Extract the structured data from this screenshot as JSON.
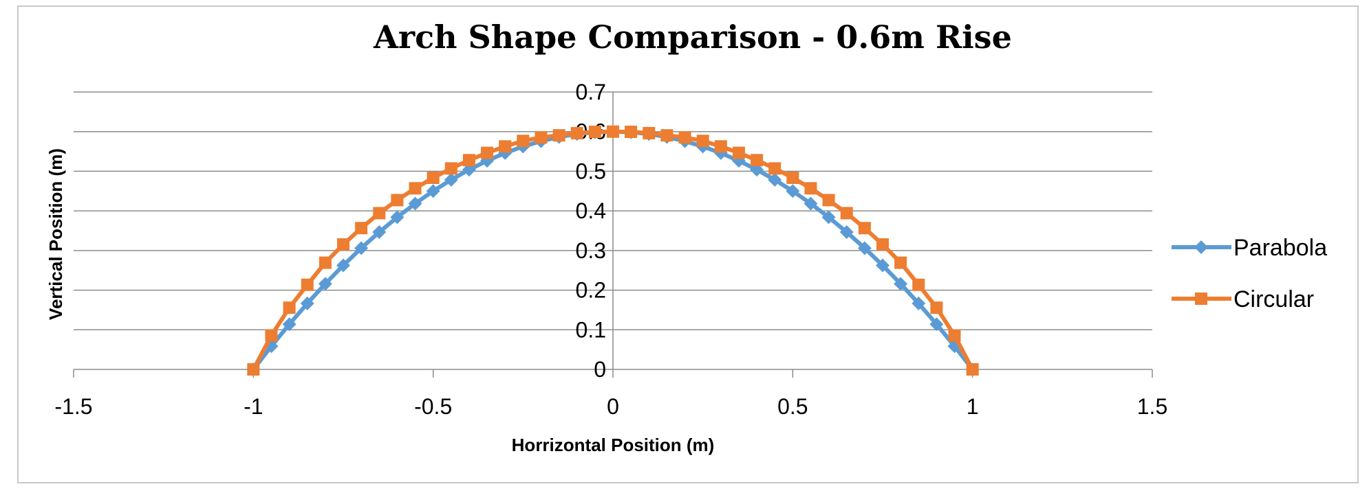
{
  "chart_data": {
    "type": "line",
    "title": "Arch Shape Comparison - 0.6m Rise",
    "xlabel": "Horrizontal Position (m)",
    "ylabel": "Vertical Position (m)",
    "xlim": [
      -1.5,
      1.5
    ],
    "ylim": [
      0,
      0.7
    ],
    "x_ticks": [
      "-1.5",
      "-1",
      "-0.5",
      "0",
      "0.5",
      "1",
      "1.5"
    ],
    "y_ticks": [
      "0",
      "0.1",
      "0.2",
      "0.3",
      "0.4",
      "0.5",
      "0.6",
      "0.7"
    ],
    "grid": "horizontal",
    "legend_position": "right",
    "x": [
      -1,
      -0.95,
      -0.9,
      -0.85,
      -0.8,
      -0.75,
      -0.7,
      -0.65,
      -0.6,
      -0.55,
      -0.5,
      -0.45,
      -0.4,
      -0.35,
      -0.3,
      -0.25,
      -0.2,
      -0.15,
      -0.1,
      -0.05,
      0,
      0.05,
      0.1,
      0.15,
      0.2,
      0.25,
      0.3,
      0.35,
      0.4,
      0.45,
      0.5,
      0.55,
      0.6,
      0.65,
      0.7,
      0.75,
      0.8,
      0.85,
      0.9,
      0.95,
      1
    ],
    "series": [
      {
        "name": "Parabola",
        "color": "#5b9bd5",
        "marker": "diamond",
        "values": [
          0,
          0.0585,
          0.114,
          0.1665,
          0.216,
          0.2625,
          0.306,
          0.3465,
          0.384,
          0.4185,
          0.45,
          0.4785,
          0.504,
          0.5265,
          0.546,
          0.5625,
          0.576,
          0.5865,
          0.594,
          0.5985,
          0.6,
          0.5985,
          0.594,
          0.5865,
          0.576,
          0.5625,
          0.546,
          0.5265,
          0.504,
          0.4785,
          0.45,
          0.4185,
          0.384,
          0.3465,
          0.306,
          0.2625,
          0.216,
          0.1665,
          0.114,
          0.0585,
          0
        ]
      },
      {
        "name": "Circular",
        "color": "#ed7d31",
        "marker": "square",
        "values": [
          0,
          0.0857,
          0.1557,
          0.2135,
          0.2693,
          0.3153,
          0.3566,
          0.3943,
          0.4272,
          0.457,
          0.4835,
          0.5071,
          0.528,
          0.5465,
          0.5627,
          0.5766,
          0.5853,
          0.5906,
          0.5962,
          0.5995,
          0.6,
          0.5995,
          0.5962,
          0.5906,
          0.5853,
          0.5766,
          0.5627,
          0.5465,
          0.528,
          0.5071,
          0.4835,
          0.457,
          0.4272,
          0.3943,
          0.3566,
          0.3153,
          0.2693,
          0.2135,
          0.1557,
          0.0857,
          0
        ]
      }
    ]
  }
}
